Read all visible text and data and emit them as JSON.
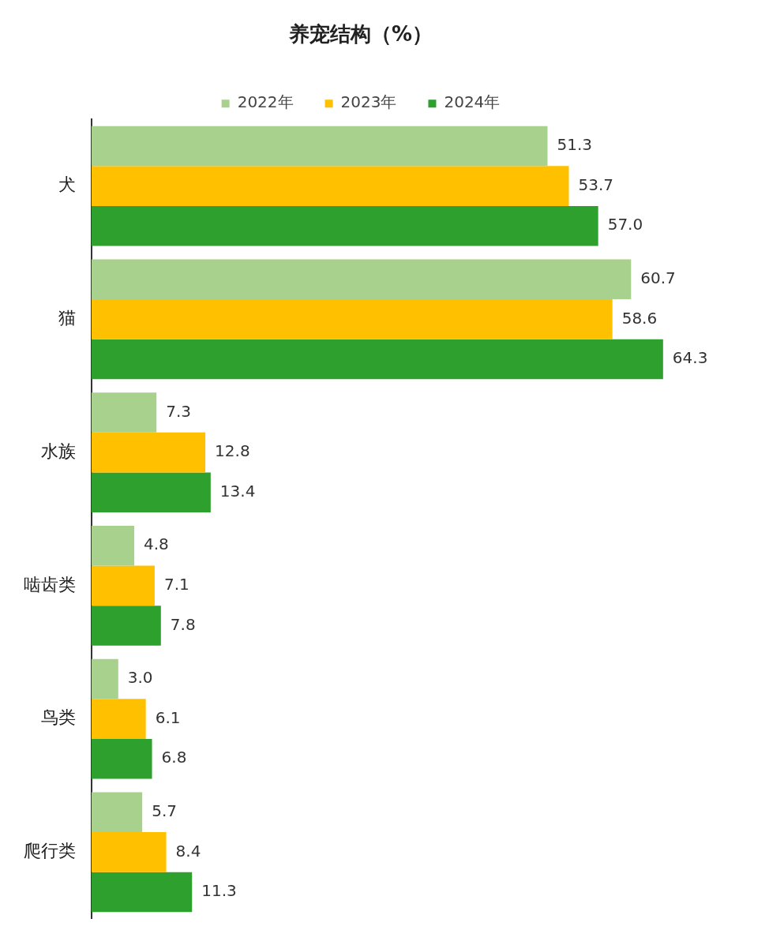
{
  "chart_data": {
    "type": "bar",
    "orientation": "horizontal",
    "title": "养宠结构（%）",
    "categories": [
      "犬",
      "猫",
      "水族",
      "啮齿类",
      "鸟类",
      "爬行类"
    ],
    "series": [
      {
        "name": "2022年",
        "color": "#a9d18e",
        "values": [
          51.3,
          60.7,
          7.3,
          4.8,
          3.0,
          5.7
        ],
        "value_labels": [
          "51.3",
          "60.7",
          "7.3",
          "4.8",
          "3.0",
          "5.7"
        ]
      },
      {
        "name": "2023年",
        "color": "#ffc000",
        "values": [
          53.7,
          58.6,
          12.8,
          7.1,
          6.1,
          8.4
        ],
        "value_labels": [
          "53.7",
          "58.6",
          "12.8",
          "7.1",
          "6.1",
          "8.4"
        ]
      },
      {
        "name": "2024年",
        "color": "#2ea02e",
        "values": [
          57.0,
          64.3,
          13.4,
          7.8,
          6.8,
          11.3
        ],
        "value_labels": [
          "57.0",
          "64.3",
          "13.4",
          "7.8",
          "6.8",
          "11.3"
        ]
      }
    ],
    "legend": "top",
    "tick_labels": "y"
  }
}
